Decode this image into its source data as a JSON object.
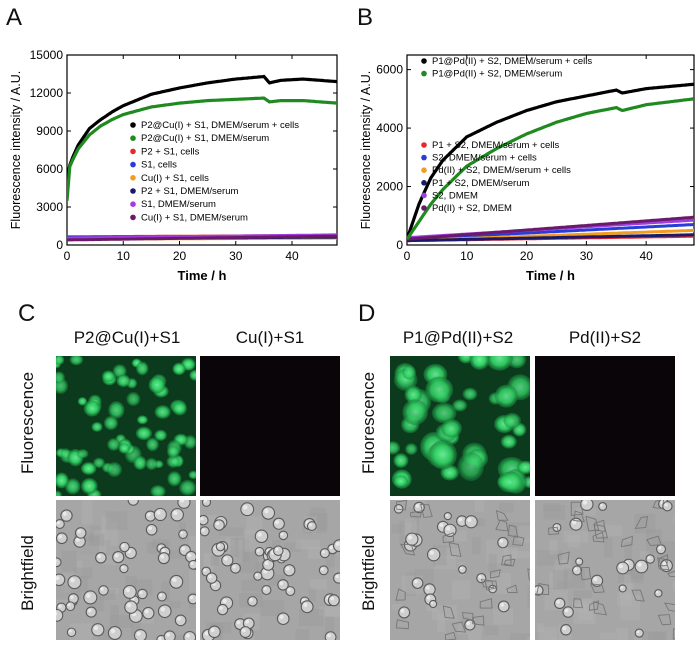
{
  "panels": {
    "A": "A",
    "B": "B",
    "C": "C",
    "D": "D"
  },
  "micrographs": {
    "row_labels": [
      "Fluorescence",
      "Brightfield"
    ],
    "C_conditions": [
      "P2@Cu(I)+S1",
      "Cu(I)+S1"
    ],
    "D_conditions": [
      "P1@Pd(II)+S2",
      "Pd(II)+S2"
    ],
    "colors": {
      "fluor_bg": "#0c3a1c",
      "fluor_cell": "#2fcf62",
      "dark": "#0a0508",
      "bright_bg": "#a6a6a6"
    }
  },
  "chart_data": [
    {
      "type": "line",
      "panel": "A",
      "xlabel": "Time / h",
      "ylabel": "Fluorescence intensity / A.U.",
      "xlim": [
        0,
        48
      ],
      "ylim": [
        0,
        15000
      ],
      "xticks": [
        0,
        10,
        20,
        30,
        40
      ],
      "yticks": [
        0,
        3000,
        6000,
        9000,
        12000,
        15000
      ],
      "series": [
        {
          "name": "P2@Cu(I) + S1, DMEM/serum + cells",
          "color": "#000000",
          "x": [
            0,
            0.5,
            1,
            2,
            4,
            6,
            8,
            10,
            15,
            20,
            25,
            30,
            35,
            36,
            38,
            42,
            48
          ],
          "y": [
            5300,
            6300,
            6900,
            7900,
            9200,
            9900,
            10500,
            11000,
            11900,
            12400,
            12800,
            13100,
            13300,
            12800,
            13000,
            13100,
            12900
          ]
        },
        {
          "name": "P2@Cu(I) + S1, DMEM/serum",
          "color": "#1f8a1f",
          "x": [
            0,
            0.5,
            1,
            2,
            4,
            6,
            8,
            10,
            15,
            20,
            25,
            30,
            35,
            36,
            38,
            42,
            48
          ],
          "y": [
            3500,
            6200,
            6700,
            7600,
            8700,
            9400,
            9900,
            10300,
            10900,
            11200,
            11400,
            11500,
            11600,
            11300,
            11400,
            11400,
            11200
          ]
        },
        {
          "name": "P2 + S1, cells",
          "color": "#e8282d",
          "x": [
            0,
            48
          ],
          "y": [
            650,
            750
          ]
        },
        {
          "name": "S1, cells",
          "color": "#2a3cd6",
          "x": [
            0,
            48
          ],
          "y": [
            600,
            700
          ]
        },
        {
          "name": "Cu(I) + S1, cells",
          "color": "#f39c1f",
          "x": [
            0,
            48
          ],
          "y": [
            450,
            550
          ]
        },
        {
          "name": "P2 + S1, DMEM/serum",
          "color": "#1a1a66",
          "x": [
            0,
            48
          ],
          "y": [
            500,
            620
          ]
        },
        {
          "name": "S1, DMEM/serum",
          "color": "#a13ce0",
          "x": [
            0,
            48
          ],
          "y": [
            550,
            800
          ]
        },
        {
          "name": "Cu(I) + S1, DMEM/serum",
          "color": "#6a1a6a",
          "x": [
            0,
            48
          ],
          "y": [
            400,
            700
          ]
        }
      ]
    },
    {
      "type": "line",
      "panel": "B",
      "xlabel": "Time / h",
      "ylabel": "Fluorescence intensity / A.U.",
      "xlim": [
        0,
        48
      ],
      "ylim": [
        0,
        6500
      ],
      "xticks": [
        0,
        10,
        20,
        30,
        40
      ],
      "yticks": [
        0,
        2000,
        4000,
        6000
      ],
      "series": [
        {
          "name": "P1@Pd(II) + S2, DMEM/serum + cells",
          "color": "#000000",
          "x": [
            0,
            1,
            2,
            4,
            6,
            8,
            10,
            15,
            20,
            25,
            30,
            35,
            36,
            40,
            48
          ],
          "y": [
            200,
            800,
            1400,
            2300,
            2900,
            3300,
            3700,
            4200,
            4600,
            4900,
            5100,
            5300,
            5200,
            5350,
            5500
          ]
        },
        {
          "name": "P1@Pd(II) + S2, DMEM/serum",
          "color": "#1f8a1f",
          "x": [
            0,
            1,
            2,
            4,
            6,
            8,
            10,
            15,
            20,
            25,
            30,
            35,
            36,
            40,
            48
          ],
          "y": [
            200,
            500,
            800,
            1400,
            1900,
            2300,
            2700,
            3300,
            3800,
            4200,
            4500,
            4700,
            4600,
            4800,
            5000
          ]
        },
        {
          "name": "P1 + S2, DMEM/serum + cells",
          "color": "#e8282d",
          "x": [
            0,
            48
          ],
          "y": [
            150,
            300
          ]
        },
        {
          "name": "S2, DMEM/serum + cells",
          "color": "#2a3cd6",
          "x": [
            0,
            48
          ],
          "y": [
            200,
            700
          ]
        },
        {
          "name": "Pd(II) + S2, DMEM/serum + cells",
          "color": "#f39c1f",
          "x": [
            0,
            48
          ],
          "y": [
            150,
            500
          ]
        },
        {
          "name": "P1 + S2, DMEM/serum",
          "color": "#1a1a66",
          "x": [
            0,
            48
          ],
          "y": [
            150,
            350
          ]
        },
        {
          "name": "S2, DMEM",
          "color": "#a13ce0",
          "x": [
            0,
            48
          ],
          "y": [
            250,
            850
          ]
        },
        {
          "name": "Pd(II) + S2, DMEM",
          "color": "#6a1a6a",
          "x": [
            0,
            48
          ],
          "y": [
            200,
            950
          ]
        }
      ]
    }
  ]
}
